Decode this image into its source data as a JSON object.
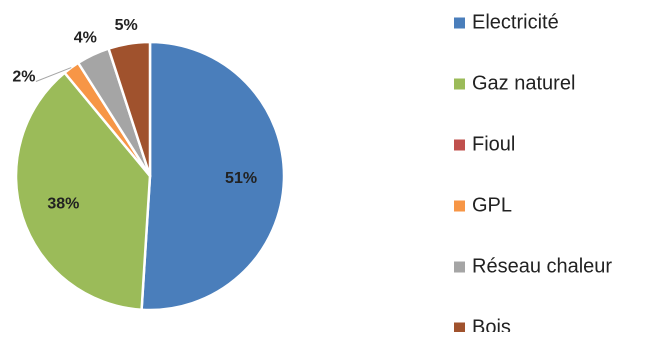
{
  "chart_data": {
    "type": "pie",
    "title": "",
    "categories": [
      "Electricité",
      "Gaz naturel",
      "Fioul",
      "GPL",
      "Réseau chaleur",
      "Bois"
    ],
    "values": [
      51,
      38,
      0,
      2,
      4,
      5
    ],
    "labels": [
      "51%",
      "38%",
      "",
      "2%",
      "4%",
      "5%"
    ],
    "colors": [
      "#4a7ebb",
      "#9bbb59",
      "#c0504d",
      "#f79646",
      "#a5a5a5",
      "#a0522d"
    ],
    "legend_position": "right",
    "start_angle_deg": 0,
    "direction": "clockwise"
  }
}
